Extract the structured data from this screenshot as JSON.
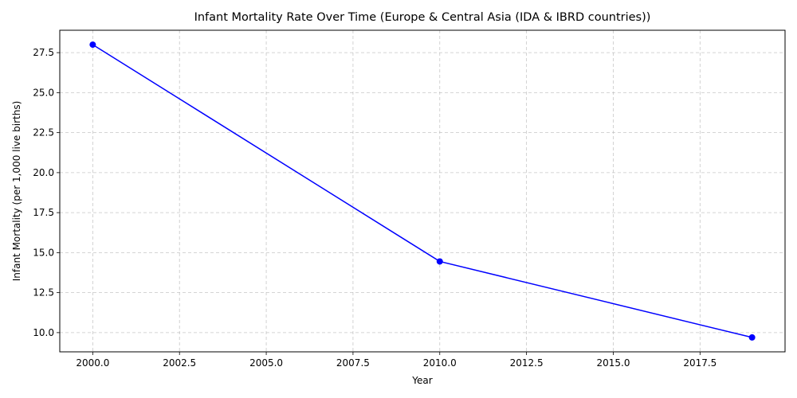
{
  "chart_data": {
    "type": "line",
    "title": "Infant Mortality Rate Over Time (Europe & Central Asia (IDA & IBRD countries))",
    "xlabel": "Year",
    "ylabel": "Infant Mortality (per 1,000 live births)",
    "xlim": [
      1999.05,
      2019.95
    ],
    "ylim": [
      8.8,
      28.9
    ],
    "x_ticks": [
      2000.0,
      2002.5,
      2005.0,
      2007.5,
      2010.0,
      2012.5,
      2015.0,
      2017.5
    ],
    "x_tick_labels": [
      "2000.0",
      "2002.5",
      "2005.0",
      "2007.5",
      "2010.0",
      "2012.5",
      "2015.0",
      "2017.5"
    ],
    "y_ticks": [
      10.0,
      12.5,
      15.0,
      17.5,
      20.0,
      22.5,
      25.0,
      27.5
    ],
    "y_tick_labels": [
      "10.0",
      "12.5",
      "15.0",
      "17.5",
      "20.0",
      "22.5",
      "25.0",
      "27.5"
    ],
    "grid": true,
    "series": [
      {
        "x": [
          2000,
          2010,
          2019
        ],
        "y": [
          28.0,
          14.45,
          9.7
        ],
        "color": "#0000ff",
        "marker": "circle"
      }
    ]
  }
}
